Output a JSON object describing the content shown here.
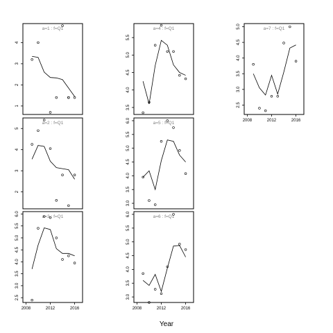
{
  "chart_data": {
    "type": "scatter",
    "xlabel": "Year",
    "x_ticks": [
      2008,
      2012,
      2016
    ],
    "xlim": [
      2007.5,
      2017.3
    ],
    "point_x": [
      2009,
      2010,
      2011,
      2012,
      2013,
      2014,
      2015,
      2016
    ],
    "line_x": [
      2009,
      2010,
      2011,
      2012,
      2013,
      2014,
      2015,
      2016
    ],
    "panels": [
      {
        "label": "a=1 : f=Q1",
        "ylim": [
          0.6,
          4.9
        ],
        "yticks": [
          "1",
          "2",
          "3",
          "4"
        ],
        "ytick_values": [
          1,
          2,
          3,
          4
        ],
        "points": [
          3.2,
          4.0,
          0.7,
          1.4,
          1.4,
          1.4,
          4.8,
          1.4
        ],
        "point_x": [
          2009,
          2010,
          2012,
          2013,
          2015,
          2016,
          2014,
          2015
        ],
        "line": [
          3.35,
          3.3,
          2.6,
          2.35,
          2.33,
          2.25,
          1.85,
          1.45
        ],
        "show_x_ticks": false
      },
      {
        "label": "a=2 : f=Q1",
        "ylim": [
          1.2,
          5.5
        ],
        "yticks": [
          "2",
          "3",
          "4",
          "5"
        ],
        "ytick_values": [
          2,
          3,
          4,
          5
        ],
        "points": [
          4.25,
          4.9,
          5.4,
          4.05,
          1.6,
          2.8,
          1.35,
          2.8
        ],
        "line": [
          3.55,
          4.2,
          4.15,
          3.45,
          3.15,
          3.1,
          3.05,
          2.6
        ],
        "show_x_ticks": false
      },
      {
        "label": "a=3 : f=Q1",
        "ylim": [
          2.3,
          6.1
        ],
        "yticks": [
          "2.5",
          "3.0",
          "3.5",
          "4.0",
          "4.5",
          "5.0",
          "5.5",
          "6.0"
        ],
        "ytick_values": [
          2.5,
          3.0,
          3.5,
          4.0,
          4.5,
          5.0,
          5.5,
          6.0
        ],
        "points": [
          2.4,
          5.4,
          5.9,
          5.85,
          5.0,
          4.1,
          4.25,
          3.95
        ],
        "line": [
          3.7,
          4.7,
          5.42,
          5.35,
          4.55,
          4.35,
          4.35,
          4.25
        ],
        "show_x_ticks": true
      },
      {
        "label": "a=4 : f=Q1",
        "ylim": [
          3.3,
          5.9
        ],
        "yticks": [
          "3.5",
          "4.0",
          "4.5",
          "5.0",
          "5.5"
        ],
        "ytick_values": [
          3.5,
          4.0,
          4.5,
          5.0,
          5.5
        ],
        "points": [
          3.35,
          3.65,
          5.28,
          5.85,
          5.1,
          5.1,
          4.42,
          4.32
        ],
        "line": [
          4.25,
          3.6,
          4.7,
          5.42,
          5.28,
          4.72,
          4.5,
          4.42
        ],
        "show_x_ticks": false
      },
      {
        "label": "a=5 : f=Q1",
        "ylim": [
          2.8,
          6.1
        ],
        "yticks": [
          "3.0",
          "3.5",
          "4.0",
          "4.5",
          "5.0",
          "5.5",
          "6.0"
        ],
        "ytick_values": [
          3.0,
          3.5,
          4.0,
          4.5,
          5.0,
          5.5,
          6.0
        ],
        "points": [
          3.95,
          3.1,
          2.95,
          5.25,
          6.0,
          5.75,
          4.92,
          4.08
        ],
        "line": [
          3.95,
          4.18,
          3.5,
          4.55,
          5.3,
          5.25,
          4.75,
          4.5
        ],
        "show_x_ticks": false
      },
      {
        "label": "a=6 : f=Q1",
        "ylim": [
          2.8,
          6.1
        ],
        "yticks": [
          "3.0",
          "3.5",
          "4.0",
          "4.5",
          "5.0",
          "5.5",
          "6.0"
        ],
        "ytick_values": [
          3.0,
          3.5,
          4.0,
          4.5,
          5.0,
          5.5,
          6.0
        ],
        "points": [
          3.85,
          2.8,
          3.28,
          3.12,
          4.1,
          6.0,
          4.92,
          4.72
        ],
        "line": [
          3.6,
          3.42,
          3.82,
          3.2,
          4.05,
          4.85,
          4.87,
          4.45
        ],
        "show_x_ticks": true
      },
      {
        "label": "a=7 : f=Q1",
        "ylim": [
          2.2,
          5.1
        ],
        "yticks": [
          "2.5",
          "3.0",
          "3.5",
          "4.0",
          "4.5",
          "5.0"
        ],
        "ytick_values": [
          2.5,
          3.0,
          3.5,
          4.0,
          4.5,
          5.0
        ],
        "points": [
          3.8,
          2.4,
          2.32,
          2.78,
          2.78,
          4.48,
          5.0,
          3.9
        ],
        "line": [
          3.5,
          3.05,
          2.82,
          3.45,
          2.85,
          3.55,
          4.32,
          4.42
        ],
        "show_x_ticks": true
      }
    ]
  }
}
